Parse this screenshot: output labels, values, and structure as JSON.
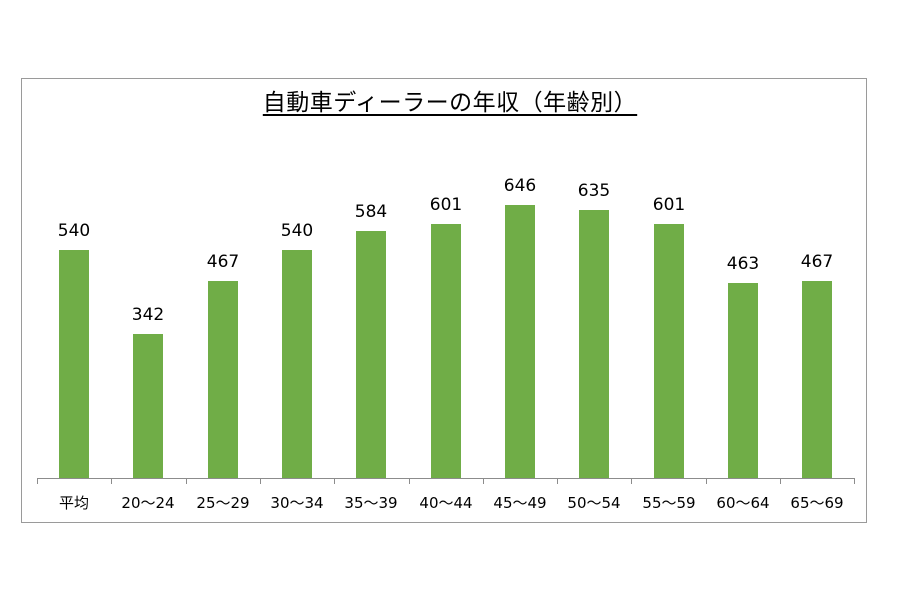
{
  "chart_data": {
    "type": "bar",
    "title": "自動車ディーラーの年収（年齢別）",
    "xlabel": "",
    "ylabel": "",
    "categories": [
      "平均",
      "20～24",
      "25～29",
      "30～34",
      "35～39",
      "40～44",
      "45～49",
      "50～54",
      "55～59",
      "60～64",
      "65～69"
    ],
    "values": [
      540,
      342,
      467,
      540,
      584,
      601,
      646,
      635,
      601,
      463,
      467
    ],
    "series": [
      {
        "name": "年収",
        "values": [
          540,
          342,
          467,
          540,
          584,
          601,
          646,
          635,
          601,
          463,
          467
        ],
        "color": "#70ad47"
      }
    ],
    "ylim": [
      0,
      700
    ],
    "grid": false,
    "legend": "none",
    "data_labels": true,
    "y_axis_visible": false
  },
  "colors": {
    "bar": "#70ad47",
    "axis": "#8c8c8c",
    "border": "#9a9a9a",
    "text": "#000000"
  }
}
